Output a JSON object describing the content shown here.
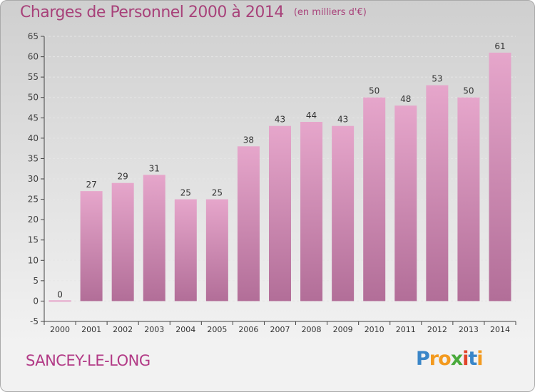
{
  "title": "Charges de Personnel 2000 à 2014",
  "unit_note": "(en milliers d'€)",
  "commune": "SANCEY-LE-LONG",
  "logo": {
    "letters": [
      "P",
      "r",
      "o",
      "x",
      "i",
      "t",
      "i"
    ],
    "colors": [
      "#3a86c8",
      "#f39a1f",
      "#f39a1f",
      "#4aaa3c",
      "#e0442a",
      "#3a86c8",
      "#f39a1f"
    ]
  },
  "colors": {
    "bar_top": "#e6a6cb",
    "bar_bottom": "#b26e98",
    "title": "#a8427a"
  },
  "chart_data": {
    "type": "bar",
    "categories": [
      "2000",
      "2001",
      "2002",
      "2003",
      "2004",
      "2005",
      "2006",
      "2007",
      "2008",
      "2009",
      "2010",
      "2011",
      "2012",
      "2013",
      "2014"
    ],
    "values": [
      0,
      27,
      29,
      31,
      25,
      25,
      38,
      43,
      44,
      43,
      50,
      48,
      53,
      50,
      61
    ],
    "ylim": [
      -5,
      65
    ],
    "yticks": [
      -5,
      0,
      5,
      10,
      15,
      20,
      25,
      30,
      35,
      40,
      45,
      50,
      55,
      60,
      65
    ],
    "grid": true,
    "data_labels": true
  }
}
